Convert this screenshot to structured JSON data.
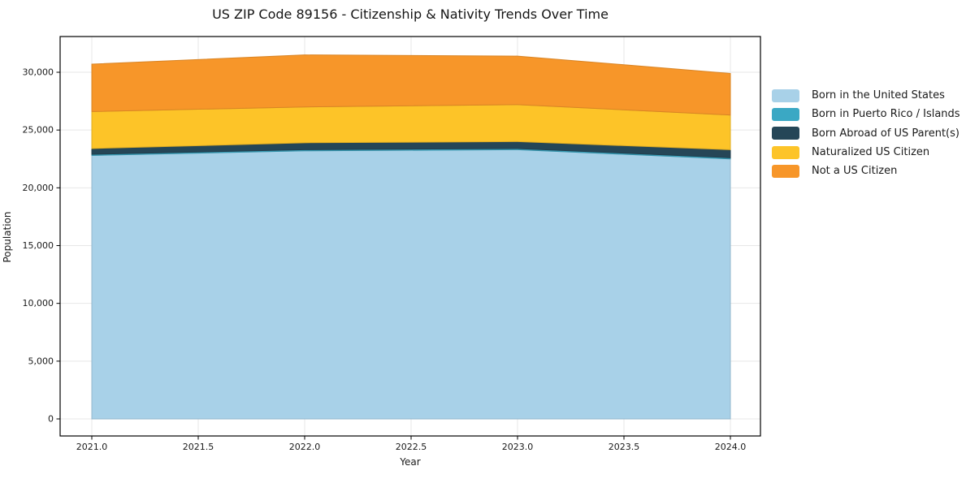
{
  "title": "US ZIP Code 89156 - Citizenship & Nativity Trends Over Time",
  "axes": {
    "x_label": "Year",
    "y_label": "Population"
  },
  "chart_data": {
    "type": "area",
    "stacked": true,
    "title": "US ZIP Code 89156 - Citizenship & Nativity Trends Over Time",
    "xlabel": "Year",
    "ylabel": "Population",
    "x": [
      2021,
      2022,
      2023,
      2024
    ],
    "series": [
      {
        "name": "Born in the United States",
        "color": "#a8d1e8",
        "values": [
          22800,
          23200,
          23300,
          22500
        ]
      },
      {
        "name": "Born in Puerto Rico / Islands",
        "color": "#3aa8c4",
        "values": [
          100,
          100,
          100,
          100
        ]
      },
      {
        "name": "Born Abroad of US Parent(s)",
        "color": "#254657",
        "values": [
          500,
          600,
          600,
          700
        ]
      },
      {
        "name": "Naturalized US Citizen",
        "color": "#fdc428",
        "values": [
          3200,
          3100,
          3200,
          3000
        ]
      },
      {
        "name": "Not a US Citizen",
        "color": "#f79629",
        "values": [
          4100,
          4500,
          4200,
          3600
        ]
      }
    ],
    "totals": [
      30700,
      31500,
      31400,
      29900
    ],
    "x_ticks": [
      2021.0,
      2021.5,
      2022.0,
      2022.5,
      2023.0,
      2023.5,
      2024.0
    ],
    "y_ticks": [
      0,
      5000,
      10000,
      15000,
      20000,
      25000,
      30000
    ],
    "xlim": [
      2020.85,
      2024.14
    ],
    "ylim": [
      0,
      33100
    ],
    "grid": true,
    "legend_position": "right of plot, no frame",
    "grid_color": "#e7e7e7",
    "frame_color": "#000000",
    "tick_label_color": "#1a1a1a"
  }
}
